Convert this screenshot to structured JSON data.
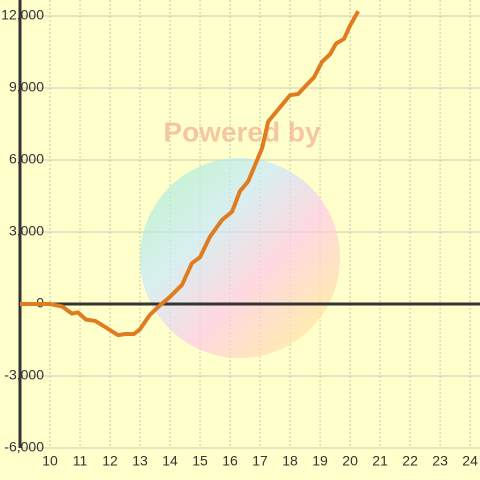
{
  "chart_data": {
    "type": "line",
    "watermark": "Powered by",
    "x": [
      9,
      10,
      10.4,
      10.73,
      10.93,
      11.2,
      11.5,
      11.83,
      12.27,
      12.5,
      12.8,
      13,
      13.33,
      13.67,
      14,
      14.4,
      14.73,
      15,
      15.33,
      15.73,
      16.07,
      16.33,
      16.6,
      16.87,
      17.07,
      17.27,
      17.6,
      18,
      18.27,
      18.53,
      18.8,
      19.07,
      19.33,
      19.53,
      19.8,
      20,
      20.27
    ],
    "series": [
      {
        "color": "#e07b20",
        "values": [
          0,
          0,
          -100,
          -400,
          -350,
          -650,
          -700,
          -950,
          -1300,
          -1250,
          -1250,
          -1050,
          -450,
          -50,
          300,
          800,
          1700,
          1950,
          2800,
          3500,
          3850,
          4700,
          5100,
          5900,
          6500,
          7600,
          8100,
          8700,
          8750,
          9100,
          9450,
          10100,
          10400,
          10850,
          11050,
          11600,
          12200
        ]
      }
    ],
    "xlim": [
      9,
      24.33
    ],
    "ylim": [
      -6000,
      12000
    ],
    "xticks": [
      10,
      11,
      12,
      13,
      14,
      15,
      16,
      17,
      18,
      19,
      20,
      21,
      22,
      23,
      24
    ],
    "yticks": [
      {
        "value": -6000,
        "label": "-6,000"
      },
      {
        "value": -3000,
        "label": "-3,000"
      },
      0,
      {
        "value": 3000,
        "label": "3,000"
      },
      {
        "value": 6000,
        "label": "6,000"
      },
      {
        "value": 9000,
        "label": "9,000"
      },
      {
        "value": 12000,
        "label": "12,000"
      }
    ],
    "grid": true
  }
}
